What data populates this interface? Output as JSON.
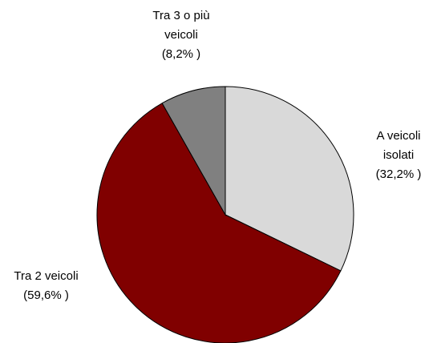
{
  "chart_data": {
    "type": "pie",
    "categories": [
      "A veicoli isolati",
      "Tra 2 veicoli",
      "Tra 3 o più veicoli"
    ],
    "values": [
      32.2,
      59.6,
      8.2
    ],
    "value_labels": [
      "(32,2% )",
      "(59,6% )",
      "(8,2% )"
    ],
    "colors": [
      "#d9d9d9",
      "#800000",
      "#808080"
    ]
  }
}
